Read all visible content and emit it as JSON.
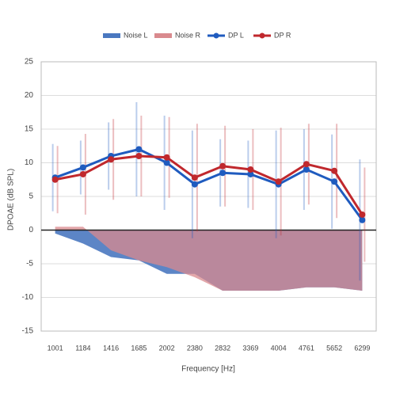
{
  "chart_data": {
    "type": "line",
    "x_label": "Frequency [Hz]",
    "y_label": "DPOAE (dB SPL)",
    "categories": [
      "1001",
      "1184",
      "1416",
      "1685",
      "2002",
      "2380",
      "2832",
      "3369",
      "4004",
      "4761",
      "5652",
      "6299"
    ],
    "series": [
      {
        "name": "Noise L",
        "style": "area",
        "color": "#4a78c0",
        "values": [
          -0.5,
          -2,
          -4,
          -4.5,
          -6.5,
          -6.5,
          -9,
          -9,
          -9,
          -8.5,
          -8.5,
          -9
        ]
      },
      {
        "name": "Noise R",
        "style": "area",
        "color": "#d98a8e",
        "values": [
          0.5,
          0.5,
          -3,
          -4.5,
          -5.5,
          -7,
          -9,
          -9,
          -9,
          -8.5,
          -8.5,
          -9
        ]
      },
      {
        "name": "DP L",
        "style": "line",
        "color": "#1f5bbf",
        "values": [
          7.8,
          9.3,
          11,
          12,
          10,
          6.8,
          8.5,
          8.3,
          6.8,
          9,
          7.2,
          1.5
        ],
        "errors": [
          5,
          4,
          5,
          7,
          7,
          8,
          5,
          5,
          8,
          6,
          7,
          9
        ]
      },
      {
        "name": "DP R",
        "style": "line",
        "color": "#c0282d",
        "values": [
          7.5,
          8.3,
          10.5,
          11,
          10.8,
          7.8,
          9.5,
          9,
          7.2,
          9.8,
          8.8,
          2.3
        ],
        "errors": [
          5,
          6,
          6,
          6,
          6,
          8,
          6,
          6,
          8,
          6,
          7,
          7
        ]
      }
    ],
    "ylim": [
      -15,
      25
    ],
    "yticks": [
      -15,
      -10,
      -5,
      0,
      5,
      10,
      15,
      20,
      25
    ],
    "grid": true
  }
}
